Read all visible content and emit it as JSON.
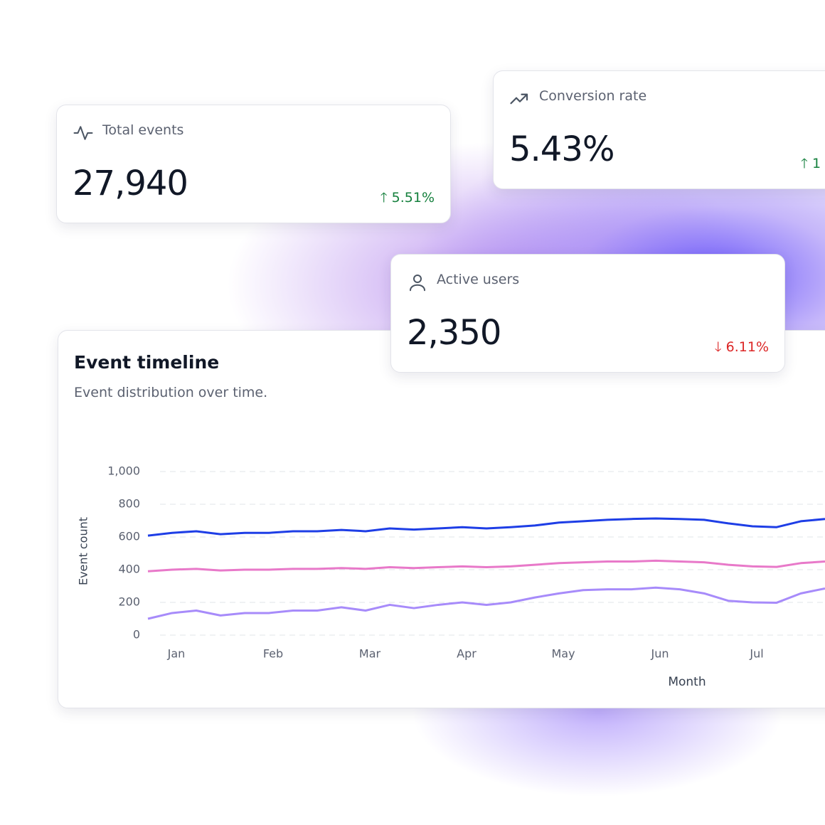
{
  "cards": [
    {
      "title": "Total events",
      "value": "27,940",
      "change": "5.51%"
    },
    {
      "title": "Conversion rate",
      "value": "5.43%",
      "change": "1"
    },
    {
      "title": "Active users",
      "value": "2,350",
      "change": "6.11%"
    }
  ],
  "chart_card": {
    "title": "Event timeline",
    "subtitle": "Event distribution over time."
  },
  "chart_data": {
    "type": "line",
    "xlabel": "Month",
    "ylabel": "Event count",
    "categories": [
      null,
      "Jan",
      null,
      null,
      null,
      "Feb",
      null,
      null,
      null,
      "Mar",
      null,
      null,
      null,
      "Apr",
      null,
      null,
      null,
      "May",
      null,
      null,
      null,
      "Jun",
      null,
      null,
      null,
      "Jul",
      null,
      null,
      null
    ],
    "series": [
      {
        "color": "#1e3ee6",
        "values": [
          608,
          625,
          635,
          617,
          625,
          625,
          635,
          635,
          643,
          635,
          652,
          645,
          652,
          660,
          652,
          660,
          670,
          688,
          696,
          705,
          710,
          713,
          710,
          705,
          683,
          665,
          660,
          696,
          710
        ]
      },
      {
        "color": "#e879c9",
        "values": [
          390,
          400,
          405,
          395,
          400,
          400,
          405,
          405,
          410,
          405,
          415,
          410,
          415,
          420,
          415,
          420,
          430,
          440,
          445,
          450,
          450,
          455,
          450,
          445,
          430,
          420,
          417,
          440,
          450
        ]
      },
      {
        "color": "#a78bfa",
        "values": [
          100,
          135,
          150,
          120,
          135,
          135,
          150,
          150,
          170,
          150,
          185,
          165,
          185,
          200,
          185,
          200,
          230,
          255,
          275,
          280,
          280,
          290,
          280,
          255,
          210,
          200,
          198,
          255,
          285
        ]
      }
    ],
    "ylim": [
      0,
      1000
    ],
    "yticks": [
      0,
      200,
      400,
      600,
      800,
      {
        "value": 1000,
        "label": "1,000"
      }
    ],
    "grid": true
  }
}
